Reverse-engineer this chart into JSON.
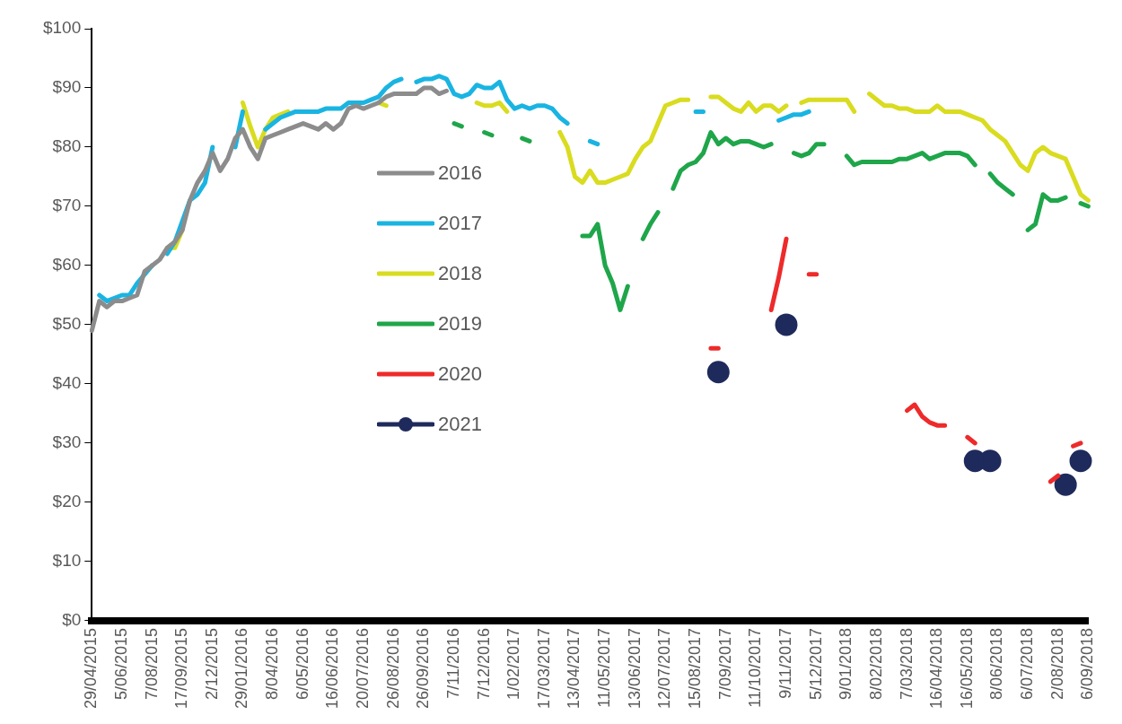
{
  "chart_data": {
    "type": "line",
    "categories": [
      "29/04/2015",
      null,
      null,
      null,
      "5/06/2015",
      null,
      null,
      null,
      "7/08/2015",
      null,
      null,
      null,
      "17/09/2015",
      null,
      null,
      null,
      "2/12/2015",
      null,
      null,
      null,
      "29/01/2016",
      null,
      null,
      null,
      "8/04/2016",
      null,
      null,
      null,
      "6/05/2016",
      null,
      null,
      null,
      "16/06/2016",
      null,
      null,
      null,
      "20/07/2016",
      null,
      null,
      null,
      "26/08/2016",
      null,
      null,
      null,
      "26/09/2016",
      null,
      null,
      null,
      "7/11/2016",
      null,
      null,
      null,
      "7/12/2016",
      null,
      null,
      null,
      "1/02/2017",
      null,
      null,
      null,
      "17/03/2017",
      null,
      null,
      null,
      "13/04/2017",
      null,
      null,
      null,
      "11/05/2017",
      null,
      null,
      null,
      "13/06/2017",
      null,
      null,
      null,
      "12/07/2017",
      null,
      null,
      null,
      "15/08/2017",
      null,
      null,
      null,
      "7/09/2017",
      null,
      null,
      null,
      "11/10/2017",
      null,
      null,
      null,
      "9/11/2017",
      null,
      null,
      null,
      "5/12/2017",
      null,
      null,
      null,
      "9/01/2018",
      null,
      null,
      null,
      "8/02/2018",
      null,
      null,
      null,
      "7/03/2018",
      null,
      null,
      null,
      "16/04/2018",
      null,
      null,
      null,
      "16/05/2018",
      null,
      null,
      null,
      "8/06/2018",
      null,
      null,
      null,
      "6/07/2018",
      null,
      null,
      null,
      "2/08/2018",
      null,
      null,
      null,
      "6/09/2018"
    ],
    "series": [
      {
        "name": "2016",
        "color": "#8c8c8c",
        "marker": "none",
        "values": [
          49,
          54,
          53,
          54,
          54,
          54.5,
          55,
          59,
          60,
          61,
          63,
          64,
          66,
          71,
          74,
          76,
          79,
          76,
          78,
          81.5,
          83,
          80,
          78,
          81.5,
          82,
          82.5,
          83,
          83.5,
          84,
          83.5,
          83,
          84,
          83,
          84,
          86.5,
          87,
          86.5,
          87,
          87.5,
          88.5,
          89,
          89,
          89,
          89,
          90,
          90,
          89,
          89.5,
          null,
          null,
          null,
          null,
          null,
          null,
          null,
          null,
          null,
          null,
          null,
          null,
          null,
          null,
          null,
          null,
          null,
          null,
          null,
          null,
          null,
          null,
          null,
          null,
          null,
          null,
          null,
          null,
          null,
          null,
          null,
          null,
          null,
          null,
          null,
          null,
          null,
          null,
          null,
          null,
          null,
          null,
          null,
          null,
          null,
          null,
          null,
          null,
          null,
          null,
          null,
          null,
          null,
          null,
          null,
          null,
          null,
          null,
          null,
          null,
          null,
          null,
          null,
          null,
          null,
          null,
          null,
          null,
          null,
          null,
          null,
          null,
          null,
          null,
          null,
          null,
          null,
          null,
          null,
          null,
          null,
          null,
          null,
          null,
          null
        ]
      },
      {
        "name": "2017",
        "color": "#1ab4e2",
        "marker": "none",
        "values": [
          null,
          55,
          54,
          54.5,
          55,
          55,
          57,
          58.5,
          60,
          null,
          62,
          64,
          67.5,
          71,
          72,
          74,
          80,
          null,
          null,
          80,
          86,
          null,
          null,
          83,
          84,
          85,
          85.5,
          86,
          86,
          86,
          86,
          86.5,
          86.5,
          86.5,
          87.5,
          87.5,
          87.5,
          88,
          88.5,
          90,
          91,
          91.5,
          null,
          91,
          91.5,
          91.5,
          92,
          91.5,
          89,
          88.5,
          89,
          90.5,
          90,
          90,
          91,
          88,
          86.5,
          87,
          86.5,
          87,
          87,
          86.5,
          85,
          84,
          null,
          null,
          81,
          80.5,
          null,
          null,
          null,
          null,
          null,
          null,
          null,
          null,
          null,
          null,
          null,
          null,
          86,
          86,
          null,
          null,
          null,
          null,
          null,
          null,
          null,
          null,
          null,
          84.5,
          85,
          85.5,
          85.5,
          86,
          null,
          null,
          null,
          null,
          null,
          null,
          null,
          null,
          null,
          null,
          null,
          null,
          null,
          null,
          null,
          null,
          null,
          null,
          null,
          null,
          null,
          null,
          null,
          null,
          null,
          null,
          null,
          null,
          null,
          null,
          null,
          null,
          null,
          null,
          null,
          null,
          null
        ]
      },
      {
        "name": "2018",
        "color": "#d9dc1f",
        "marker": "none",
        "values": [
          null,
          null,
          null,
          null,
          null,
          null,
          null,
          null,
          null,
          null,
          63,
          63,
          66,
          null,
          null,
          null,
          null,
          null,
          null,
          null,
          87.5,
          83.5,
          80,
          83,
          85,
          85.5,
          86,
          null,
          null,
          null,
          null,
          null,
          null,
          null,
          null,
          null,
          null,
          null,
          87.5,
          87,
          null,
          null,
          null,
          null,
          null,
          null,
          null,
          null,
          null,
          null,
          null,
          87.5,
          87,
          87,
          87.5,
          86,
          null,
          null,
          null,
          null,
          null,
          null,
          82.5,
          80,
          75,
          74,
          76,
          74,
          74,
          74.5,
          75,
          75.5,
          78,
          80,
          81,
          84,
          87,
          87.5,
          88,
          88,
          null,
          null,
          88.5,
          88.5,
          87.5,
          86.5,
          86,
          87.5,
          86,
          87,
          87,
          86,
          87,
          null,
          87.5,
          88,
          88,
          88,
          88,
          88,
          88,
          86,
          null,
          89,
          88,
          87,
          87,
          86.5,
          86.5,
          86,
          86,
          86,
          87,
          86,
          86,
          86,
          85.5,
          85,
          84.5,
          83,
          82,
          81,
          79,
          77,
          76,
          79,
          80,
          79,
          78.5,
          78,
          75,
          72,
          71
        ]
      },
      {
        "name": "2019",
        "color": "#1fa64a",
        "marker": "none",
        "values": [
          null,
          null,
          null,
          null,
          null,
          null,
          null,
          null,
          null,
          null,
          null,
          null,
          null,
          null,
          null,
          null,
          null,
          null,
          null,
          null,
          null,
          null,
          null,
          null,
          null,
          null,
          null,
          null,
          null,
          null,
          null,
          null,
          null,
          null,
          null,
          null,
          null,
          null,
          null,
          null,
          null,
          null,
          null,
          null,
          null,
          null,
          null,
          null,
          84,
          83.5,
          null,
          null,
          82.5,
          82,
          null,
          null,
          null,
          81.5,
          81,
          null,
          null,
          null,
          null,
          null,
          null,
          65,
          65,
          67,
          60,
          57,
          52.5,
          56.5,
          null,
          64.5,
          67,
          69,
          null,
          73,
          76,
          77,
          77.5,
          79,
          82.5,
          80.5,
          81.5,
          80.5,
          81,
          81,
          80.5,
          80,
          80.5,
          null,
          null,
          79,
          78.5,
          79,
          80.5,
          80.5,
          null,
          null,
          78.5,
          77,
          77.5,
          77.5,
          77.5,
          77.5,
          77.5,
          78,
          78,
          78.5,
          79,
          78,
          78.5,
          79,
          79,
          79,
          78.5,
          77,
          null,
          75.5,
          74,
          73,
          72,
          null,
          66,
          67,
          72,
          71,
          71,
          71.5,
          null,
          70.5,
          70
        ]
      },
      {
        "name": "2020",
        "color": "#ee2a2a",
        "marker": "none",
        "values": [
          null,
          null,
          null,
          null,
          null,
          null,
          null,
          null,
          null,
          null,
          null,
          null,
          null,
          null,
          null,
          null,
          null,
          null,
          null,
          null,
          null,
          null,
          null,
          null,
          null,
          null,
          null,
          null,
          null,
          null,
          null,
          null,
          null,
          null,
          null,
          null,
          null,
          null,
          null,
          null,
          null,
          null,
          null,
          null,
          null,
          null,
          null,
          null,
          null,
          null,
          null,
          null,
          null,
          null,
          null,
          null,
          null,
          null,
          null,
          null,
          null,
          null,
          null,
          null,
          null,
          null,
          null,
          null,
          null,
          null,
          null,
          null,
          null,
          null,
          null,
          null,
          null,
          null,
          null,
          null,
          null,
          null,
          46,
          46,
          null,
          null,
          null,
          null,
          null,
          null,
          52.5,
          58,
          64.5,
          null,
          null,
          58.5,
          58.5,
          null,
          null,
          null,
          null,
          null,
          null,
          null,
          null,
          null,
          null,
          null,
          35.5,
          36.5,
          34.5,
          33.5,
          33,
          33,
          null,
          null,
          31,
          30,
          null,
          null,
          null,
          null,
          null,
          null,
          null,
          null,
          null,
          23.5,
          24.5,
          null,
          29.5,
          30,
          null
        ]
      },
      {
        "name": "2021",
        "color": "#1f2a5c",
        "marker": "circle",
        "values": [
          null,
          null,
          null,
          null,
          null,
          null,
          null,
          null,
          null,
          null,
          null,
          null,
          null,
          null,
          null,
          null,
          null,
          null,
          null,
          null,
          null,
          null,
          null,
          null,
          null,
          null,
          null,
          null,
          null,
          null,
          null,
          null,
          null,
          null,
          null,
          null,
          null,
          null,
          null,
          null,
          null,
          null,
          null,
          null,
          null,
          null,
          null,
          null,
          null,
          null,
          null,
          null,
          null,
          null,
          null,
          null,
          null,
          null,
          null,
          null,
          null,
          null,
          null,
          null,
          null,
          null,
          null,
          null,
          null,
          null,
          null,
          null,
          null,
          null,
          null,
          null,
          null,
          null,
          null,
          null,
          null,
          null,
          null,
          42,
          null,
          null,
          null,
          null,
          null,
          null,
          null,
          null,
          50,
          null,
          null,
          null,
          null,
          null,
          null,
          null,
          null,
          null,
          null,
          null,
          null,
          null,
          null,
          null,
          null,
          null,
          null,
          null,
          null,
          null,
          null,
          null,
          null,
          27,
          null,
          27,
          null,
          null,
          null,
          null,
          null,
          null,
          null,
          null,
          null,
          23,
          null,
          27,
          null
        ]
      }
    ],
    "ylim": [
      0,
      100
    ],
    "yticks": [
      {
        "value": 0,
        "label": "$0"
      },
      {
        "value": 10,
        "label": "$10"
      },
      {
        "value": 20,
        "label": "$20"
      },
      {
        "value": 30,
        "label": "$30"
      },
      {
        "value": 40,
        "label": "$40"
      },
      {
        "value": 50,
        "label": "$50"
      },
      {
        "value": 60,
        "label": "$60"
      },
      {
        "value": 70,
        "label": "$70"
      },
      {
        "value": 80,
        "label": "$80"
      },
      {
        "value": 90,
        "label": "$90"
      },
      {
        "value": 100,
        "label": "$100"
      }
    ],
    "grid": false,
    "legend": "center"
  }
}
